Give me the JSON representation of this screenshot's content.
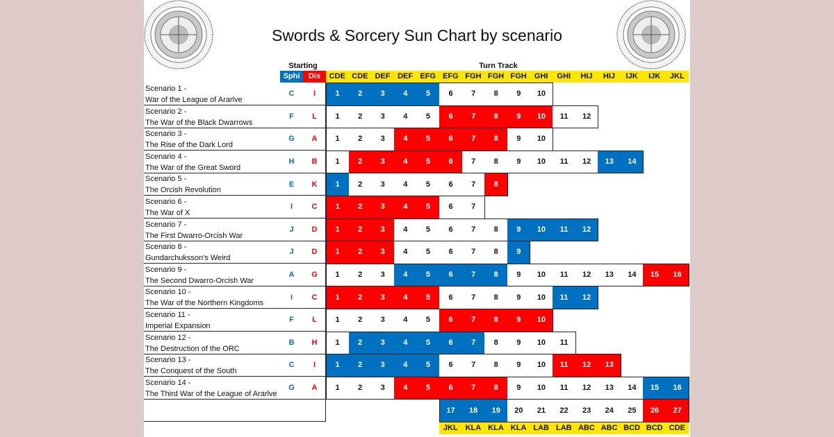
{
  "title": "Swords & Sorcery Sun Chart by scenario",
  "headers": {
    "starting": "Starting",
    "turn_track": "Turn Track",
    "sphi": "Sphi",
    "dis": "Dis"
  },
  "colors": {
    "blue": "#0070c0",
    "red": "#ff0000",
    "yellow": "#ffe600"
  },
  "top_sun_letters": [
    "CDE",
    "CDE",
    "DEF",
    "DEF",
    "EFG",
    "EFG",
    "FGH",
    "FGH",
    "FGH",
    "GHI",
    "GHI",
    "HIJ",
    "HIJ",
    "IJK",
    "IJK",
    "JKL"
  ],
  "chart_data": {
    "type": "table",
    "scenarios": [
      {
        "line1": "Scenario 1 -",
        "line2": "War of the League of Ararlve",
        "sphi": "C",
        "dis": "I",
        "cells": "bbbbbwwwww"
      },
      {
        "line1": "Scenario 2 -",
        "line2": "The War of the Black Dwarrows",
        "sphi": "F",
        "dis": "L",
        "cells": "wwwwwrrrrrww"
      },
      {
        "line1": "Scenario 3 -",
        "line2": "The Rise of the Dark Lord",
        "sphi": "G",
        "dis": "A",
        "cells": "wwwrrrrrww"
      },
      {
        "line1": "Scenario 4 -",
        "line2": "The War of the Great Sword",
        "sphi": "H",
        "dis": "B",
        "cells": "wrrrrrwwwwwwbb"
      },
      {
        "line1": "Scenario 5 -",
        "line2": "The Orcish Revolution",
        "sphi": "E",
        "dis": "K",
        "cells": "bwwwwwwr"
      },
      {
        "line1": "Scenario 6 -",
        "line2": "The War of X",
        "sphi": "I",
        "dis": "C",
        "cells": "rrrrrww"
      },
      {
        "line1": "Scenario 7 -",
        "line2": "The First Dwarro-Orcish War",
        "sphi": "J",
        "dis": "D",
        "cells": "rrrwwwwwbbbb"
      },
      {
        "line1": "Scenario 8 -",
        "line2": "Gundarchuksson's Weird",
        "sphi": "J",
        "dis": "D",
        "cells": "rrrwwwwwb"
      },
      {
        "line1": "Scenario 9 -",
        "line2": "The Second Dwarro-Orcish War",
        "sphi": "A",
        "dis": "G",
        "cells": "wwwbbbbbwwwwwwrr"
      },
      {
        "line1": "Scenario 10 -",
        "line2": "The War of the Northern Kingdoms",
        "sphi": "I",
        "dis": "C",
        "cells": "rrrrrwwwwwbb"
      },
      {
        "line1": "Scenario 11 -",
        "line2": "Imperial Expansion",
        "sphi": "F",
        "dis": "L",
        "cells": "wwwwwrrrrr"
      },
      {
        "line1": "Scenario 12 -",
        "line2": "The Destruction of the ORC",
        "sphi": "B",
        "dis": "H",
        "cells": "wbbbbbbwwww"
      },
      {
        "line1": "Scenario 13 -",
        "line2": "The Conquest of the South",
        "sphi": "C",
        "dis": "I",
        "cells": "bbbbbwwwwwrrr"
      },
      {
        "line1": "Scenario 14 -",
        "line2": "The Third War of the League of Ararlve",
        "sphi": "G",
        "dis": "A",
        "cells": "wwwrrrrrwwwwwwbb"
      }
    ],
    "extension": {
      "start_turn": 17,
      "start_column": 5,
      "cells": "bbbwwwwwwrr"
    },
    "bottom_sun_letters": [
      "JKL",
      "KLA",
      "KLA",
      "KLA",
      "LAB",
      "LAB",
      "ABC",
      "ABC",
      "BCD",
      "BCD",
      "CDE"
    ]
  }
}
